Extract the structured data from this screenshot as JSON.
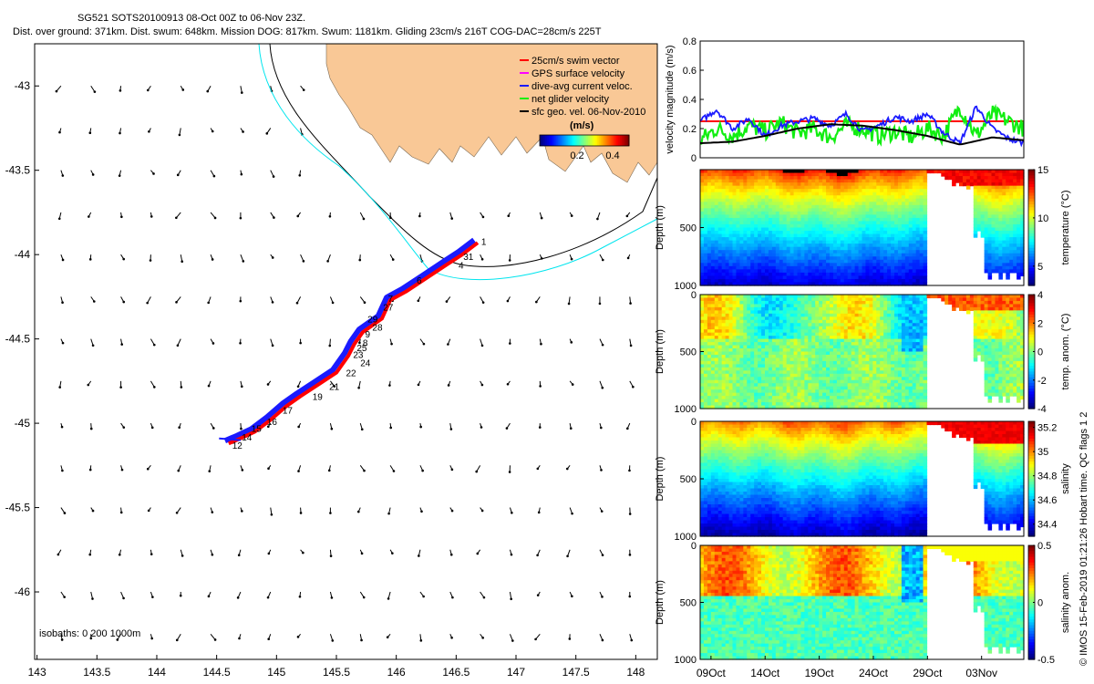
{
  "header": {
    "line1": "SG521 SOTS20100913 08-Oct 00Z to 06-Nov 23Z.",
    "line2": "Dist. over ground: 371km. Dist. swum: 648km. Mission DOG: 817km. Swum: 1181km. Gliding 23cm/s 216T COG-DAC=28cm/s 225T"
  },
  "side_caption": "© IMOS 15-Feb-2019 01:21:26 Hobart time. QC flags 1  2",
  "colors": {
    "land": "#f9c896",
    "track_red": "#ff0000",
    "track_blue": "#1a1aff",
    "isobath_cyan": "#00e5ee",
    "isobath_black": "#000000",
    "mean_line": "#000000",
    "green_line": "#11ee11"
  },
  "chart_data": [
    {
      "type": "scatter",
      "name": "map",
      "xlim": [
        142.98,
        148.18
      ],
      "ylim": [
        -46.4,
        -42.75
      ],
      "x_ticks": [
        143,
        143.5,
        144,
        144.5,
        145,
        145.5,
        146,
        146.5,
        147,
        147.5,
        148
      ],
      "x_tick_labels": [
        "143",
        "143.5",
        "144",
        "144.5",
        "145",
        "145.5",
        "146",
        "146.5",
        "147",
        "147.5",
        "148"
      ],
      "y_ticks": [
        -43,
        -43.5,
        -44,
        -44.5,
        -45,
        -45.5,
        -46
      ],
      "y_tick_labels": [
        "-43",
        "-43.5",
        "-44",
        "-44.5",
        "-45",
        "-45.5",
        "-46"
      ],
      "legend": {
        "placement": "top-right",
        "items": [
          {
            "label": "25cm/s swim vector",
            "color": "#ff0000"
          },
          {
            "label": "GPS surface velocity",
            "color": "#ff00ff"
          },
          {
            "label": "dive-avg current veloc.",
            "color": "#1a1aff"
          },
          {
            "label": "net glider velocity",
            "color": "#11ee11"
          },
          {
            "label": "sfc geo. vel. 06-Nov-2010",
            "color": "#000000"
          }
        ]
      },
      "speed_colorbar": {
        "label": "(m/s)",
        "ticks": [
          "0.2",
          "0.4"
        ]
      },
      "isobath_label": "isobaths: 0   200  1000m",
      "track": {
        "lon": [
          146.68,
          146.55,
          146.42,
          146.25,
          146.08,
          145.95,
          145.88,
          145.72,
          145.65,
          145.6,
          145.5,
          145.35,
          145.2,
          145.08,
          144.95,
          144.82,
          144.7,
          144.6
        ],
        "lat": [
          -43.93,
          -44.0,
          -44.06,
          -44.14,
          -44.22,
          -44.27,
          -44.38,
          -44.46,
          -44.53,
          -44.6,
          -44.7,
          -44.77,
          -44.84,
          -44.9,
          -44.98,
          -45.05,
          -45.09,
          -45.12
        ]
      },
      "track_day_labels": [
        {
          "text": "1",
          "lon": 146.71,
          "lat": -43.92
        },
        {
          "text": "31",
          "lon": 146.56,
          "lat": -44.01
        },
        {
          "text": "4",
          "lon": 146.52,
          "lat": -44.06
        },
        {
          "text": "6",
          "lon": 146.17,
          "lat": -44.15
        },
        {
          "text": "7",
          "lon": 145.93,
          "lat": -44.26
        },
        {
          "text": "27",
          "lon": 145.89,
          "lat": -44.31
        },
        {
          "text": "29",
          "lon": 145.76,
          "lat": -44.38
        },
        {
          "text": "28",
          "lon": 145.8,
          "lat": -44.43
        },
        {
          "text": "9",
          "lon": 145.74,
          "lat": -44.47
        },
        {
          "text": "8",
          "lon": 145.72,
          "lat": -44.52
        },
        {
          "text": "25",
          "lon": 145.67,
          "lat": -44.55
        },
        {
          "text": "23",
          "lon": 145.64,
          "lat": -44.59
        },
        {
          "text": "24",
          "lon": 145.7,
          "lat": -44.64
        },
        {
          "text": "22",
          "lon": 145.58,
          "lat": -44.7
        },
        {
          "text": "21",
          "lon": 145.44,
          "lat": -44.78
        },
        {
          "text": "19",
          "lon": 145.3,
          "lat": -44.84
        },
        {
          "text": "17",
          "lon": 145.05,
          "lat": -44.92
        },
        {
          "text": "16",
          "lon": 144.92,
          "lat": -44.99
        },
        {
          "text": "15",
          "lon": 144.79,
          "lat": -45.03
        },
        {
          "text": "14",
          "lon": 144.71,
          "lat": -45.08
        },
        {
          "text": "12",
          "lon": 144.63,
          "lat": -45.13
        }
      ]
    },
    {
      "type": "line",
      "name": "velocity",
      "ylabel": "velocity magnitude (m/s)",
      "ylim": [
        0,
        0.8
      ],
      "y_ticks": [
        0,
        0.2,
        0.4,
        0.6,
        0.8
      ],
      "y_tick_labels": [
        "0",
        "0.2",
        "0.4",
        "0.6",
        "0.8"
      ],
      "xlim_day": [
        0,
        29.9
      ],
      "series": [
        {
          "name": "swim speed",
          "color": "#ff0000",
          "x": [
            0,
            29.9
          ],
          "values": [
            0.25,
            0.25
          ]
        },
        {
          "name": "net glider velocity",
          "color": "#11ee11",
          "x": [
            0,
            1.5,
            3,
            4.5,
            6,
            7.5,
            9,
            10.5,
            12,
            13.5,
            15,
            16.5,
            18,
            19.5,
            21,
            22.5,
            24,
            25.5,
            27,
            28.5,
            29.9
          ],
          "values": [
            0.12,
            0.2,
            0.15,
            0.22,
            0.18,
            0.24,
            0.17,
            0.2,
            0.14,
            0.22,
            0.2,
            0.15,
            0.18,
            0.14,
            0.2,
            0.15,
            0.35,
            0.15,
            0.3,
            0.25,
            0.2
          ]
        },
        {
          "name": "dive-avg current veloc.",
          "color": "#1a1aff",
          "x": [
            0,
            1.5,
            3,
            4.5,
            6,
            7.5,
            9,
            10.5,
            12,
            13.5,
            15,
            16.5,
            18,
            19.5,
            21,
            22.5,
            24,
            25.5,
            27,
            28.5,
            29.9
          ],
          "values": [
            0.25,
            0.33,
            0.2,
            0.27,
            0.15,
            0.22,
            0.25,
            0.27,
            0.22,
            0.3,
            0.18,
            0.22,
            0.28,
            0.25,
            0.3,
            0.17,
            0.1,
            0.35,
            0.2,
            0.13,
            0.1
          ]
        },
        {
          "name": "mean",
          "color": "#000000",
          "x": [
            0,
            3,
            6,
            9,
            12,
            15,
            18,
            21,
            24,
            27,
            29.9
          ],
          "values": [
            0.1,
            0.11,
            0.15,
            0.2,
            0.23,
            0.22,
            0.19,
            0.15,
            0.09,
            0.14,
            0.12
          ]
        }
      ]
    },
    {
      "type": "heatmap",
      "name": "temperature",
      "ylabel": "Depth (m)",
      "ylim": [
        1000,
        0
      ],
      "y_ticks": [
        0,
        500,
        1000
      ],
      "y_tick_labels": [
        "",
        "500",
        "1000"
      ],
      "colorbar": {
        "label": "temperature (°C)",
        "range": [
          3,
          15
        ],
        "ticks": [
          5,
          10,
          15
        ],
        "tick_labels": [
          "5",
          "10",
          "15"
        ]
      },
      "profile_day": [
        0,
        20,
        20.6,
        22.5,
        23.2,
        26.6,
        28.8
      ],
      "profile_value": [
        14.0,
        12.0,
        10.5,
        8.5,
        6.5,
        5.0,
        4.0
      ]
    },
    {
      "type": "heatmap",
      "name": "temp_anom",
      "ylabel": "Depth (m)",
      "ylim": [
        1000,
        0
      ],
      "y_ticks": [
        0,
        500,
        1000
      ],
      "y_tick_labels": [
        "0",
        "500",
        "1000"
      ],
      "colorbar": {
        "label": "temp. anom. (°C)",
        "range": [
          -4,
          4
        ],
        "ticks": [
          4,
          2,
          0,
          -2,
          -4
        ],
        "tick_labels": [
          "4",
          "2",
          "0",
          "-2",
          "-4"
        ]
      }
    },
    {
      "type": "heatmap",
      "name": "salinity",
      "ylabel": "Depth (m)",
      "ylim": [
        1000,
        0
      ],
      "y_ticks": [
        0,
        500,
        1000
      ],
      "y_tick_labels": [
        "0",
        "500",
        "1000"
      ],
      "colorbar": {
        "label": "salinity",
        "range": [
          34.3,
          35.25
        ],
        "ticks": [
          35.2,
          35,
          34.8,
          34.6,
          34.4
        ],
        "tick_labels": [
          "35.2",
          "35",
          "34.8",
          "34.6",
          "34.4"
        ]
      },
      "profile_value": [
        35.1,
        35.0,
        34.85,
        34.65,
        34.5,
        34.4
      ]
    },
    {
      "type": "heatmap",
      "name": "sal_anom",
      "ylabel": "Depth (m)",
      "ylim": [
        1000,
        0
      ],
      "y_ticks": [
        0,
        500,
        1000
      ],
      "y_tick_labels": [
        "0",
        "500",
        "1000"
      ],
      "colorbar": {
        "label": "salinity anom.",
        "range": [
          -0.5,
          0.5
        ],
        "ticks": [
          0.5,
          0,
          -0.5
        ],
        "tick_labels": [
          "0.5",
          "0",
          "-0.5"
        ]
      },
      "time_ticks_day": [
        1,
        6,
        11,
        16,
        21,
        26
      ],
      "time_tick_labels": [
        "09Oct",
        "14Oct",
        "19Oct",
        "24Oct",
        "29Oct",
        "03Nov"
      ]
    }
  ]
}
